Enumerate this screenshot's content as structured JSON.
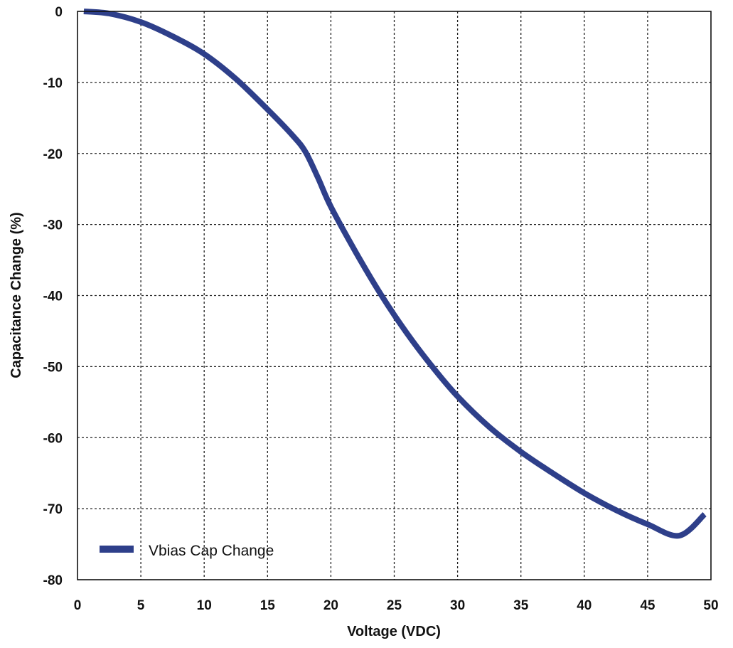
{
  "chart_data": {
    "type": "line",
    "xlabel": "Voltage (VDC)",
    "ylabel": "Capacitance Change (%)",
    "xlim": [
      0,
      50
    ],
    "ylim": [
      -80,
      0
    ],
    "x_ticks": [
      "0",
      "5",
      "10",
      "15",
      "20",
      "25",
      "30",
      "35",
      "40",
      "45",
      "50"
    ],
    "y_ticks": [
      "0",
      "-10",
      "-20",
      "-30",
      "-40",
      "-50",
      "-60",
      "-70",
      "-80"
    ],
    "grid": true,
    "legend_position": "bottom-left",
    "series": [
      {
        "name": "Vbias Cap Change",
        "color": "#2e3f8a",
        "x": [
          0.5,
          2.5,
          5,
          7.5,
          10,
          12.5,
          15,
          17,
          18,
          19,
          20,
          22,
          24,
          26,
          28,
          30,
          32.5,
          35,
          37.5,
          40,
          42.5,
          45,
          47.5,
          49.5
        ],
        "y": [
          0,
          -0.3,
          -1.5,
          -3.5,
          -6,
          -9.5,
          -13.8,
          -17.5,
          -19.8,
          -23.5,
          -27.5,
          -34,
          -40,
          -45.3,
          -50,
          -54.2,
          -58.5,
          -62,
          -65,
          -67.8,
          -70.2,
          -72.2,
          -73.8,
          -70.8
        ]
      }
    ]
  }
}
